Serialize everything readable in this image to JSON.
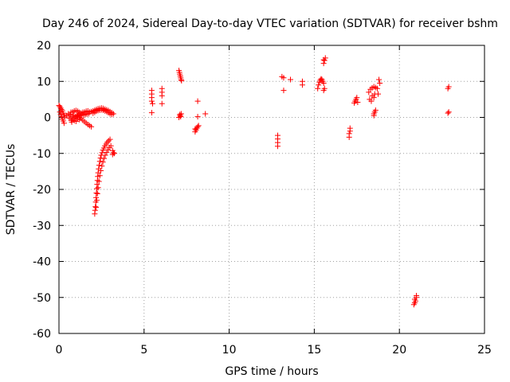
{
  "chart_data": {
    "type": "scatter",
    "title": "Day 246 of 2024, Sidereal Day-to-day VTEC variation (SDTVAR) for receiver bshm",
    "xlabel": "GPS time / hours",
    "ylabel": "SDTVAR / TECUs",
    "xlim": [
      0,
      25
    ],
    "ylim": [
      -60,
      20
    ],
    "xticks": [
      0,
      5,
      10,
      15,
      20,
      25
    ],
    "yticks": [
      -60,
      -50,
      -40,
      -30,
      -20,
      -10,
      0,
      10,
      20
    ],
    "grid": true,
    "marker": "plus",
    "color": "#ff0000",
    "series": [
      {
        "name": "SDTVAR",
        "points": [
          [
            0.0,
            3.3
          ],
          [
            0.05,
            3.0
          ],
          [
            0.1,
            2.6
          ],
          [
            0.15,
            2.2
          ],
          [
            0.2,
            1.8
          ],
          [
            0.25,
            1.2
          ],
          [
            0.3,
            0.6
          ],
          [
            0.35,
            0.1
          ],
          [
            0.05,
            1.5
          ],
          [
            0.1,
            0.8
          ],
          [
            0.15,
            0.2
          ],
          [
            0.2,
            -0.5
          ],
          [
            0.25,
            -1.0
          ],
          [
            0.3,
            -1.6
          ],
          [
            0.45,
            0.5
          ],
          [
            0.55,
            1.0
          ],
          [
            0.6,
            -0.2
          ],
          [
            0.65,
            0.8
          ],
          [
            0.7,
            1.4
          ],
          [
            0.72,
            -0.8
          ],
          [
            0.75,
            -1.3
          ],
          [
            0.8,
            1.5
          ],
          [
            0.85,
            0.6
          ],
          [
            0.9,
            1.8
          ],
          [
            0.95,
            0.2
          ],
          [
            1.0,
            1.9
          ],
          [
            1.05,
            0.4
          ],
          [
            1.1,
            1.7
          ],
          [
            1.15,
            0.7
          ],
          [
            1.2,
            1.4
          ],
          [
            1.25,
            0.5
          ],
          [
            1.3,
            1.2
          ],
          [
            1.35,
            0.9
          ],
          [
            1.4,
            1.4
          ],
          [
            1.45,
            0.6
          ],
          [
            1.5,
            1.5
          ],
          [
            1.55,
            0.8
          ],
          [
            1.6,
            1.7
          ],
          [
            1.65,
            0.9
          ],
          [
            1.7,
            1.8
          ],
          [
            1.75,
            1.0
          ],
          [
            1.8,
            1.5
          ],
          [
            0.8,
            -0.6
          ],
          [
            0.9,
            -0.9
          ],
          [
            1.0,
            -1.1
          ],
          [
            1.1,
            -0.4
          ],
          [
            1.2,
            -0.6
          ],
          [
            1.3,
            -0.3
          ],
          [
            1.4,
            -0.8
          ],
          [
            1.5,
            -1.2
          ],
          [
            1.6,
            -1.6
          ],
          [
            1.7,
            -2.0
          ],
          [
            1.8,
            -2.3
          ],
          [
            1.9,
            -2.6
          ],
          [
            0.7,
            -0.2
          ],
          [
            0.8,
            0.2
          ],
          [
            0.9,
            -0.3
          ],
          [
            1.0,
            0.1
          ],
          [
            1.1,
            0.3
          ],
          [
            1.2,
            0.0
          ],
          [
            1.9,
            1.6
          ],
          [
            2.0,
            1.8
          ],
          [
            2.1,
            2.0
          ],
          [
            2.2,
            2.2
          ],
          [
            2.3,
            2.4
          ],
          [
            2.4,
            2.5
          ],
          [
            2.5,
            2.6
          ],
          [
            2.6,
            2.5
          ],
          [
            2.7,
            2.3
          ],
          [
            2.8,
            2.1
          ],
          [
            2.9,
            1.9
          ],
          [
            3.0,
            1.6
          ],
          [
            3.1,
            1.3
          ],
          [
            3.2,
            1.0
          ],
          [
            2.0,
            1.2
          ],
          [
            2.1,
            1.4
          ],
          [
            2.2,
            1.7
          ],
          [
            2.3,
            1.9
          ],
          [
            2.4,
            2.0
          ],
          [
            2.5,
            2.1
          ],
          [
            2.6,
            2.0
          ],
          [
            2.7,
            1.8
          ],
          [
            2.8,
            1.6
          ],
          [
            2.9,
            1.3
          ],
          [
            3.0,
            1.0
          ],
          [
            3.1,
            0.8
          ],
          [
            2.1,
            -26.8
          ],
          [
            2.12,
            -25.8
          ],
          [
            2.14,
            -24.8
          ],
          [
            2.16,
            -23.5
          ],
          [
            2.18,
            -22.3
          ],
          [
            2.2,
            -21.0
          ],
          [
            2.22,
            -19.8
          ],
          [
            2.24,
            -18.6
          ],
          [
            2.26,
            -17.5
          ],
          [
            2.28,
            -16.4
          ],
          [
            2.3,
            -15.4
          ],
          [
            2.33,
            -14.3
          ],
          [
            2.36,
            -13.3
          ],
          [
            2.4,
            -12.2
          ],
          [
            2.44,
            -11.3
          ],
          [
            2.48,
            -10.5
          ],
          [
            2.53,
            -9.8
          ],
          [
            2.58,
            -9.1
          ],
          [
            2.64,
            -8.5
          ],
          [
            2.7,
            -7.9
          ],
          [
            2.77,
            -7.4
          ],
          [
            2.84,
            -6.9
          ],
          [
            2.92,
            -6.5
          ],
          [
            3.0,
            -6.1
          ],
          [
            2.18,
            -25.0
          ],
          [
            2.22,
            -23.0
          ],
          [
            2.26,
            -21.2
          ],
          [
            2.3,
            -19.5
          ],
          [
            2.35,
            -17.8
          ],
          [
            2.4,
            -16.2
          ],
          [
            2.46,
            -14.8
          ],
          [
            2.52,
            -13.5
          ],
          [
            2.58,
            -12.4
          ],
          [
            2.65,
            -11.4
          ],
          [
            2.72,
            -10.5
          ],
          [
            2.8,
            -9.7
          ],
          [
            2.88,
            -9.0
          ],
          [
            2.96,
            -8.4
          ],
          [
            3.05,
            -7.9
          ],
          [
            3.15,
            -9.2
          ],
          [
            3.2,
            -9.8
          ],
          [
            3.25,
            -10.0
          ],
          [
            3.15,
            -10.3
          ],
          [
            5.45,
            7.5
          ],
          [
            5.45,
            6.5
          ],
          [
            5.45,
            5.5
          ],
          [
            5.45,
            4.5
          ],
          [
            5.5,
            3.8
          ],
          [
            5.45,
            1.3
          ],
          [
            6.05,
            8.0
          ],
          [
            6.05,
            7.0
          ],
          [
            6.05,
            6.0
          ],
          [
            6.05,
            3.8
          ],
          [
            7.05,
            13.0
          ],
          [
            7.08,
            12.5
          ],
          [
            7.1,
            12.0
          ],
          [
            7.13,
            11.5
          ],
          [
            7.15,
            11.0
          ],
          [
            7.18,
            10.5
          ],
          [
            7.2,
            10.2
          ],
          [
            7.1,
            0.8
          ],
          [
            7.12,
            0.5
          ],
          [
            7.15,
            0.2
          ],
          [
            7.18,
            1.0
          ],
          [
            7.05,
            0.0
          ],
          [
            8.0,
            -4.0
          ],
          [
            8.05,
            -3.5
          ],
          [
            8.1,
            -3.0
          ],
          [
            8.15,
            -2.6
          ],
          [
            8.2,
            -2.3
          ],
          [
            8.0,
            -3.2
          ],
          [
            8.15,
            4.5
          ],
          [
            8.15,
            0.2
          ],
          [
            8.6,
            1.0
          ],
          [
            12.85,
            -5.0
          ],
          [
            12.85,
            -6.0
          ],
          [
            12.85,
            -7.0
          ],
          [
            12.85,
            -8.0
          ],
          [
            13.1,
            11.3
          ],
          [
            13.2,
            11.0
          ],
          [
            13.2,
            7.5
          ],
          [
            13.6,
            10.5
          ],
          [
            14.3,
            10.0
          ],
          [
            14.3,
            9.0
          ],
          [
            15.2,
            8.0
          ],
          [
            15.25,
            9.0
          ],
          [
            15.3,
            9.8
          ],
          [
            15.35,
            10.3
          ],
          [
            15.4,
            10.7
          ],
          [
            15.45,
            10.5
          ],
          [
            15.5,
            10.0
          ],
          [
            15.55,
            9.5
          ],
          [
            15.6,
            8.0
          ],
          [
            15.55,
            7.5
          ],
          [
            15.55,
            15.0
          ],
          [
            15.6,
            15.8
          ],
          [
            15.65,
            16.5
          ],
          [
            15.55,
            16.0
          ],
          [
            17.05,
            -5.5
          ],
          [
            17.05,
            -4.5
          ],
          [
            17.1,
            -3.8
          ],
          [
            17.1,
            -3.0
          ],
          [
            17.35,
            4.0
          ],
          [
            17.4,
            4.5
          ],
          [
            17.45,
            5.0
          ],
          [
            17.5,
            5.5
          ],
          [
            17.55,
            4.2
          ],
          [
            18.2,
            7.0
          ],
          [
            18.3,
            7.8
          ],
          [
            18.4,
            8.2
          ],
          [
            18.5,
            8.5
          ],
          [
            18.6,
            8.3
          ],
          [
            18.7,
            8.0
          ],
          [
            18.25,
            5.0
          ],
          [
            18.35,
            4.5
          ],
          [
            18.4,
            6.0
          ],
          [
            18.5,
            5.5
          ],
          [
            18.55,
            6.5
          ],
          [
            18.5,
            1.0
          ],
          [
            18.55,
            1.5
          ],
          [
            18.6,
            2.0
          ],
          [
            18.5,
            0.5
          ],
          [
            18.8,
            10.5
          ],
          [
            18.85,
            9.5
          ],
          [
            18.75,
            6.5
          ],
          [
            20.85,
            -52.0
          ],
          [
            20.9,
            -51.5
          ],
          [
            20.95,
            -51.0
          ],
          [
            21.0,
            -50.0
          ],
          [
            20.9,
            -50.5
          ],
          [
            21.0,
            -49.5
          ],
          [
            22.85,
            8.0
          ],
          [
            22.9,
            8.5
          ],
          [
            22.85,
            1.2
          ],
          [
            22.9,
            1.5
          ]
        ]
      }
    ]
  }
}
